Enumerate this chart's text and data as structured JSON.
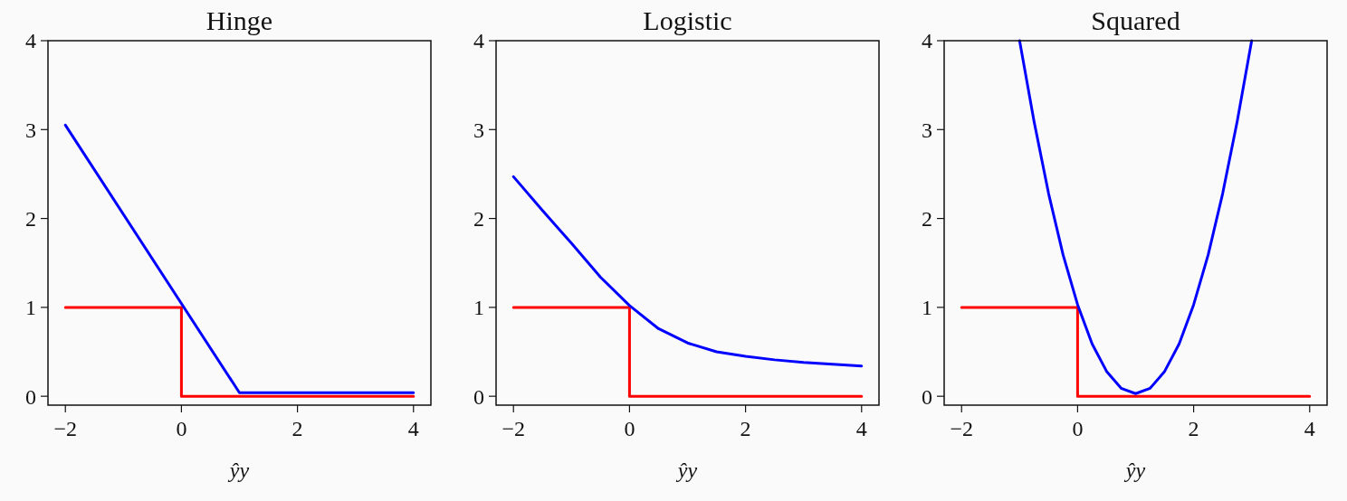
{
  "chart_data": [
    {
      "type": "line",
      "title": "Hinge",
      "xlabel": "ŷy",
      "xlim": [
        -2.3,
        4.3
      ],
      "ylim": [
        -0.1,
        4
      ],
      "xticks": [
        -2,
        0,
        2,
        4
      ],
      "yticks": [
        0,
        1,
        2,
        3,
        4
      ],
      "grid": false,
      "marker": "none",
      "line_style": "solid",
      "series": [
        {
          "color": "#ff0000",
          "x": [
            -2,
            0,
            0,
            4
          ],
          "values": [
            1,
            1,
            0,
            0
          ]
        },
        {
          "color": "#0000ff",
          "x": [
            -2,
            1,
            4
          ],
          "values": [
            3.05,
            0.04,
            0.04
          ]
        }
      ]
    },
    {
      "type": "line",
      "title": "Logistic",
      "xlabel": "ŷy",
      "xlim": [
        -2.3,
        4.3
      ],
      "ylim": [
        -0.1,
        4
      ],
      "xticks": [
        -2,
        0,
        2,
        4
      ],
      "yticks": [
        0,
        1,
        2,
        3,
        4
      ],
      "grid": false,
      "marker": "none",
      "line_style": "solid",
      "series": [
        {
          "color": "#ff0000",
          "x": [
            -2,
            0,
            0,
            4
          ],
          "values": [
            1,
            1,
            0,
            0
          ]
        },
        {
          "color": "#0000ff",
          "x": [
            -2,
            -1.5,
            -1,
            -0.5,
            0,
            0.5,
            1,
            1.5,
            2,
            2.5,
            3,
            3.5,
            4
          ],
          "values": [
            2.47,
            2.09,
            1.72,
            1.34,
            1.02,
            0.76,
            0.6,
            0.5,
            0.45,
            0.41,
            0.38,
            0.36,
            0.34
          ]
        }
      ]
    },
    {
      "type": "line",
      "title": "Squared",
      "xlabel": "ŷy",
      "xlim": [
        -2.3,
        4.3
      ],
      "ylim": [
        -0.1,
        4
      ],
      "xticks": [
        -2,
        0,
        2,
        4
      ],
      "yticks": [
        0,
        1,
        2,
        3,
        4
      ],
      "grid": false,
      "marker": "none",
      "line_style": "solid",
      "series": [
        {
          "color": "#ff0000",
          "x": [
            -2,
            0,
            0,
            4
          ],
          "values": [
            1,
            1,
            0,
            0
          ]
        },
        {
          "color": "#0000ff",
          "x": [
            -1,
            -0.75,
            -0.5,
            -0.25,
            0,
            0.25,
            0.5,
            0.75,
            1,
            1.25,
            1.5,
            1.75,
            2,
            2.25,
            2.5,
            2.75,
            3
          ],
          "values": [
            4,
            3.09,
            2.28,
            1.59,
            1.03,
            0.59,
            0.28,
            0.09,
            0.03,
            0.09,
            0.28,
            0.59,
            1.03,
            1.59,
            2.28,
            3.09,
            4
          ]
        }
      ]
    }
  ]
}
